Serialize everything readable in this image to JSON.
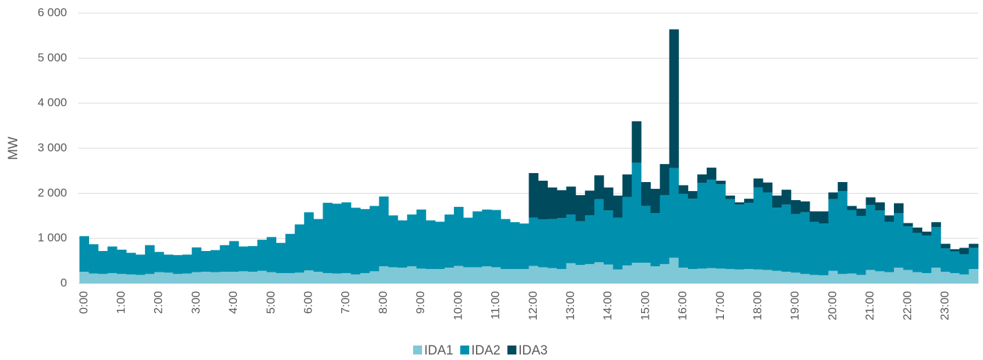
{
  "chart_data": {
    "type": "bar",
    "stacked": true,
    "y_label": "MW",
    "categories": [
      "0:00",
      null,
      null,
      null,
      "1:00",
      null,
      null,
      null,
      "2:00",
      null,
      null,
      null,
      "3:00",
      null,
      null,
      null,
      "4:00",
      null,
      null,
      null,
      "5:00",
      null,
      null,
      null,
      "6:00",
      null,
      null,
      null,
      "7:00",
      null,
      null,
      null,
      "8:00",
      null,
      null,
      null,
      "9:00",
      null,
      null,
      null,
      "10:00",
      null,
      null,
      null,
      "11:00",
      null,
      null,
      null,
      "12:00",
      null,
      null,
      null,
      "13:00",
      null,
      null,
      null,
      "14:00",
      null,
      null,
      null,
      "15:00",
      null,
      null,
      null,
      "16:00",
      null,
      null,
      null,
      "17:00",
      null,
      null,
      null,
      "18:00",
      null,
      null,
      null,
      "19:00",
      null,
      null,
      null,
      "20:00",
      null,
      null,
      null,
      "21:00",
      null,
      null,
      null,
      "22:00",
      null,
      null,
      null,
      "23:00",
      null,
      null,
      null
    ],
    "series": [
      {
        "name": "IDA1",
        "color": "#7fc8d8",
        "values": [
          260,
          220,
          210,
          230,
          210,
          200,
          190,
          210,
          250,
          240,
          210,
          220,
          250,
          260,
          250,
          260,
          260,
          270,
          260,
          280,
          250,
          230,
          230,
          240,
          290,
          260,
          230,
          220,
          230,
          200,
          230,
          270,
          380,
          360,
          350,
          380,
          330,
          320,
          320,
          350,
          390,
          360,
          360,
          380,
          360,
          320,
          320,
          320,
          390,
          360,
          340,
          320,
          450,
          410,
          430,
          470,
          420,
          310,
          400,
          460,
          460,
          380,
          430,
          570,
          350,
          320,
          330,
          340,
          330,
          320,
          310,
          320,
          310,
          300,
          280,
          260,
          240,
          210,
          190,
          180,
          280,
          210,
          220,
          190,
          300,
          270,
          250,
          350,
          300,
          250,
          230,
          350,
          260,
          230,
          200,
          320
        ]
      },
      {
        "name": "IDA2",
        "color": "#0090ad",
        "values": [
          790,
          650,
          510,
          590,
          540,
          480,
          450,
          640,
          450,
          400,
          420,
          420,
          550,
          460,
          490,
          590,
          680,
          550,
          570,
          690,
          780,
          670,
          870,
          1070,
          1290,
          1170,
          1560,
          1550,
          1570,
          1480,
          1420,
          1450,
          1550,
          1150,
          1050,
          1150,
          1310,
          1080,
          1050,
          1180,
          1310,
          1100,
          1240,
          1260,
          1270,
          1110,
          1040,
          1010,
          1070,
          1060,
          1090,
          1130,
          1080,
          970,
          1080,
          1400,
          1200,
          1150,
          1520,
          2220,
          1260,
          1180,
          1530,
          1990,
          1640,
          1560,
          1900,
          1960,
          1870,
          1550,
          1440,
          1470,
          1820,
          1720,
          1400,
          1490,
          1300,
          1370,
          1180,
          1150,
          1590,
          1840,
          1410,
          1310,
          1440,
          1350,
          1120,
          1210,
          970,
          870,
          830,
          900,
          520,
          480,
          450,
          470
        ]
      },
      {
        "name": "IDA3",
        "color": "#004a5e",
        "values": [
          0,
          0,
          0,
          0,
          0,
          0,
          0,
          0,
          0,
          0,
          0,
          0,
          0,
          0,
          0,
          0,
          0,
          0,
          0,
          0,
          0,
          0,
          0,
          0,
          0,
          0,
          0,
          0,
          0,
          0,
          0,
          0,
          0,
          0,
          0,
          0,
          0,
          0,
          0,
          0,
          0,
          0,
          0,
          0,
          0,
          0,
          0,
          0,
          990,
          860,
          700,
          620,
          620,
          580,
          550,
          530,
          510,
          490,
          500,
          920,
          530,
          540,
          690,
          3080,
          190,
          170,
          190,
          270,
          80,
          80,
          50,
          90,
          200,
          220,
          270,
          330,
          310,
          240,
          230,
          270,
          150,
          200,
          90,
          160,
          170,
          180,
          140,
          220,
          70,
          120,
          90,
          110,
          100,
          50,
          140,
          90
        ]
      }
    ],
    "ylim": [
      0,
      6000
    ],
    "yticks": [
      0,
      {
        "value": 1000,
        "label": "1 000"
      },
      {
        "value": 2000,
        "label": "2 000"
      },
      {
        "value": 3000,
        "label": "3 000"
      },
      {
        "value": 4000,
        "label": "4 000"
      },
      {
        "value": 5000,
        "label": "5 000"
      },
      {
        "value": 6000,
        "label": "6 000"
      }
    ],
    "grid": true,
    "legend": "bottom"
  }
}
